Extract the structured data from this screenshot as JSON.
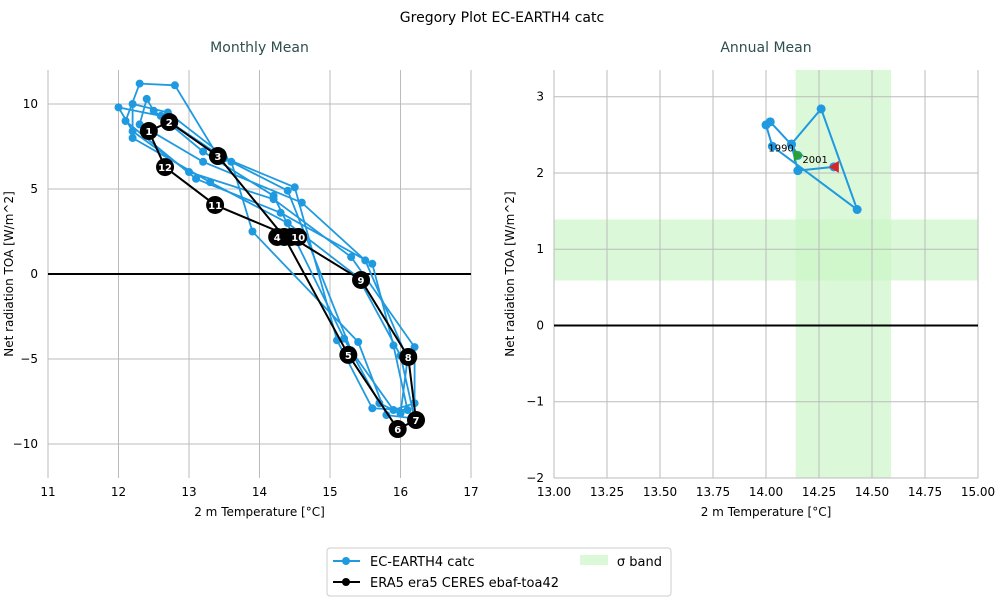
{
  "title": "Gregory Plot EC-EARTH4 catc",
  "colors": {
    "model": "#1f9ae0",
    "obs": "#000000",
    "band": "#ccf5c8",
    "start": "#2ca02c",
    "end": "#d62728",
    "subtitle": "#2f4f4f"
  },
  "chart_data": [
    {
      "type": "line",
      "title": "Monthly Mean",
      "xlabel": "2 m Temperature [°C]",
      "ylabel": "Net radiation TOA [W/m^2]",
      "xlim": [
        11,
        17
      ],
      "ylim": [
        -12,
        12
      ],
      "xticks": [
        11,
        12,
        13,
        14,
        15,
        16,
        17
      ],
      "yticks": [
        -10,
        -5,
        0,
        5,
        10
      ],
      "grid": true,
      "series": [
        {
          "name": "EC-EARTH4 catc",
          "cycles": [
            [
              [
                12.4,
                10.3
              ],
              [
                12.5,
                9.6
              ],
              [
                13.2,
                7.2
              ],
              [
                14.2,
                4.6
              ],
              [
                15.2,
                -3.8
              ],
              [
                15.7,
                -7.6
              ],
              [
                16.0,
                -8.2
              ],
              [
                16.1,
                -5.0
              ],
              [
                15.5,
                0.8
              ],
              [
                14.6,
                4.2
              ],
              [
                13.2,
                6.6
              ],
              [
                12.3,
                8.8
              ]
            ],
            [
              [
                12.0,
                9.8
              ],
              [
                12.6,
                9.3
              ],
              [
                13.5,
                6.8
              ],
              [
                14.4,
                4.9
              ],
              [
                15.3,
                -4.5
              ],
              [
                15.9,
                -8.0
              ],
              [
                16.2,
                -7.6
              ],
              [
                16.2,
                -4.3
              ],
              [
                15.3,
                1.0
              ],
              [
                14.2,
                4.4
              ],
              [
                13.0,
                6.0
              ],
              [
                12.2,
                8.4
              ]
            ],
            [
              [
                12.3,
                11.2
              ],
              [
                12.8,
                11.1
              ],
              [
                13.4,
                7.0
              ],
              [
                14.5,
                5.1
              ],
              [
                15.1,
                -3.9
              ],
              [
                15.6,
                -7.9
              ],
              [
                16.1,
                -8.0
              ],
              [
                15.9,
                -4.2
              ],
              [
                15.6,
                0.6
              ],
              [
                14.3,
                3.6
              ],
              [
                13.1,
                5.6
              ],
              [
                12.1,
                9.0
              ]
            ],
            [
              [
                12.2,
                10.0
              ],
              [
                12.7,
                9.5
              ],
              [
                13.6,
                6.6
              ],
              [
                13.9,
                2.5
              ],
              [
                15.4,
                -4.0
              ],
              [
                15.8,
                -8.3
              ],
              [
                16.2,
                -8.5
              ],
              [
                16.0,
                -4.8
              ],
              [
                15.4,
                -0.2
              ],
              [
                14.4,
                3.0
              ],
              [
                13.3,
                5.4
              ],
              [
                12.2,
                8.0
              ]
            ]
          ]
        },
        {
          "name": "ERA5 era5 CERES ebaf-toa42",
          "points": [
            {
              "label": "1",
              "x": 12.43,
              "y": 8.41
            },
            {
              "label": "2",
              "x": 12.72,
              "y": 8.94
            },
            {
              "label": "3",
              "x": 13.41,
              "y": 6.94
            },
            {
              "label": "4",
              "x": 14.35,
              "y": 2.18
            },
            {
              "label": "5",
              "x": 15.26,
              "y": -4.76
            },
            {
              "label": "6",
              "x": 15.96,
              "y": -9.12
            },
            {
              "label": "7",
              "x": 16.22,
              "y": -8.59
            },
            {
              "label": "8",
              "x": 16.11,
              "y": -4.88
            },
            {
              "label": "9",
              "x": 15.44,
              "y": -0.35
            },
            {
              "label": "10",
              "x": 14.45,
              "y": 2.18
            },
            {
              "label": "11",
              "x": 13.37,
              "y": 4.06
            },
            {
              "label": "12",
              "x": 12.66,
              "y": 6.29
            }
          ]
        }
      ]
    },
    {
      "type": "line",
      "title": "Annual Mean",
      "xlabel": "2 m Temperature [°C]",
      "ylabel": "Net radiation TOA [W/m^2]",
      "xlim": [
        13,
        15
      ],
      "ylim": [
        -2,
        3.35
      ],
      "xticks": [
        "13.00",
        "13.25",
        "13.50",
        "13.75",
        "14.00",
        "14.25",
        "14.50",
        "14.75",
        "15.00"
      ],
      "yticks": [
        -2,
        -1,
        0,
        1,
        2,
        3
      ],
      "grid": true,
      "sigma_band": {
        "x": [
          14.14,
          14.59
        ],
        "y": [
          0.59,
          1.39
        ]
      },
      "series": [
        {
          "name": "EC-EARTH4 catc",
          "points": [
            [
              14.15,
              2.23
            ],
            [
              14.12,
              2.38
            ],
            [
              14.26,
              2.84
            ],
            [
              14.43,
              1.52
            ],
            [
              14.03,
              2.35
            ],
            [
              14.0,
              2.63
            ],
            [
              14.02,
              2.67
            ],
            [
              14.12,
              2.37
            ],
            [
              14.15,
              2.03
            ],
            [
              14.32,
              2.08
            ]
          ]
        }
      ],
      "annotations": [
        {
          "text": "1990",
          "x": 14.15,
          "y": 2.23
        },
        {
          "text": "2001",
          "x": 14.32,
          "y": 2.08
        }
      ]
    }
  ],
  "legend": {
    "items": [
      "EC-EARTH4 catc",
      "ERA5 era5 CERES ebaf-toa42",
      "σ band"
    ],
    "placement": "bottom-center"
  }
}
